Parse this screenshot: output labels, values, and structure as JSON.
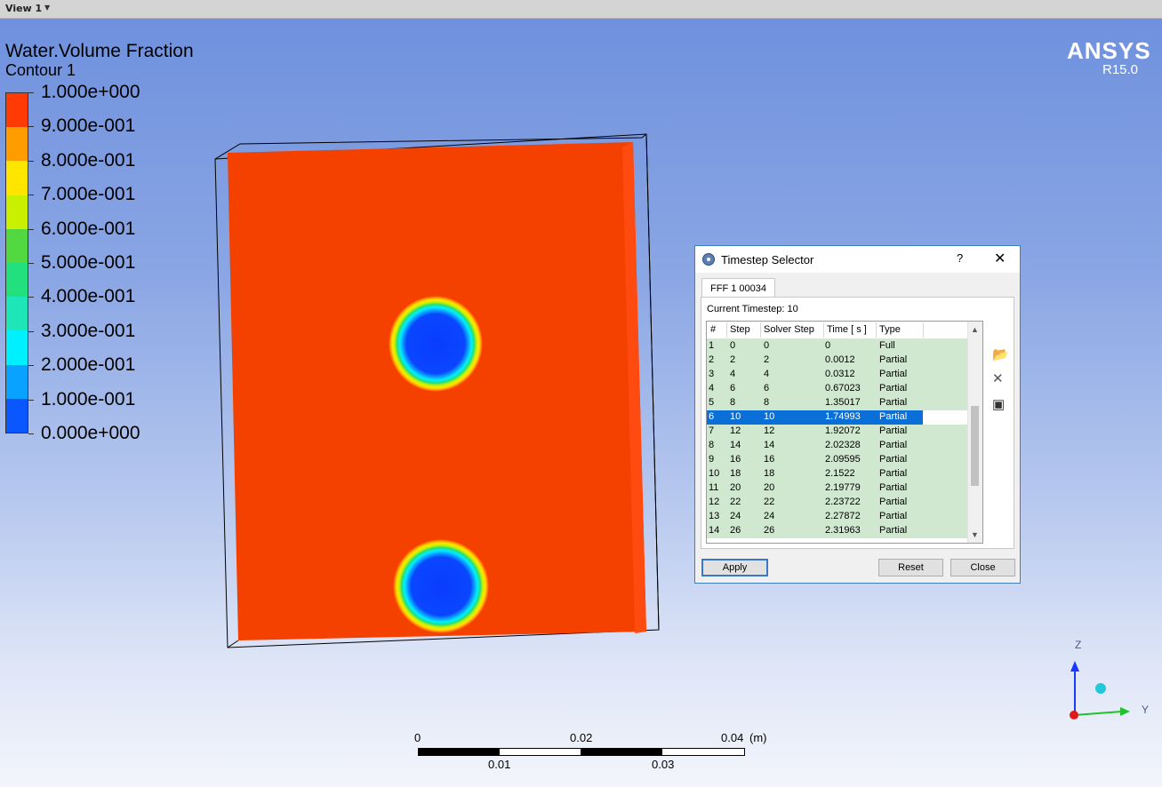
{
  "viewport": {
    "view_label": "View 1"
  },
  "legend": {
    "title": "Water.Volume Fraction",
    "subtitle": "Contour 1",
    "labels": [
      "1.000e+000",
      "9.000e-001",
      "8.000e-001",
      "7.000e-001",
      "6.000e-001",
      "5.000e-001",
      "4.000e-001",
      "3.000e-001",
      "2.000e-001",
      "1.000e-001",
      "0.000e+000"
    ],
    "colors": [
      "#ff3a05",
      "#ff9d00",
      "#ffe600",
      "#c8f000",
      "#52d840",
      "#22e07e",
      "#1ee6b8",
      "#00f0ff",
      "#0aa2ff",
      "#0a56ff"
    ]
  },
  "logo": {
    "name": "ANSYS",
    "version": "R15.0"
  },
  "scale_bar": {
    "ticks_top": [
      "0",
      "0.02",
      "0.04"
    ],
    "unit": "(m)",
    "ticks_bottom": [
      "0.01",
      "0.03"
    ]
  },
  "axes": {
    "z": "Z",
    "y": "Y"
  },
  "dialog": {
    "title": "Timestep Selector",
    "help": "?",
    "close": "✕",
    "tab": "FFF 1 00034",
    "current_timestep": "Current Timestep: 10",
    "columns": [
      "#",
      "Step",
      "Solver Step",
      "Time [ s ]",
      "Type"
    ],
    "rows": [
      [
        "1",
        "0",
        "0",
        "0",
        "Full"
      ],
      [
        "2",
        "2",
        "2",
        "0.0012",
        "Partial"
      ],
      [
        "3",
        "4",
        "4",
        "0.0312",
        "Partial"
      ],
      [
        "4",
        "6",
        "6",
        "0.67023",
        "Partial"
      ],
      [
        "5",
        "8",
        "8",
        "1.35017",
        "Partial"
      ],
      [
        "6",
        "10",
        "10",
        "1.74993",
        "Partial"
      ],
      [
        "7",
        "12",
        "12",
        "1.92072",
        "Partial"
      ],
      [
        "8",
        "14",
        "14",
        "2.02328",
        "Partial"
      ],
      [
        "9",
        "16",
        "16",
        "2.09595",
        "Partial"
      ],
      [
        "10",
        "18",
        "18",
        "2.1522",
        "Partial"
      ],
      [
        "11",
        "20",
        "20",
        "2.19779",
        "Partial"
      ],
      [
        "12",
        "22",
        "22",
        "2.23722",
        "Partial"
      ],
      [
        "13",
        "24",
        "24",
        "2.27872",
        "Partial"
      ],
      [
        "14",
        "26",
        "26",
        "2.31963",
        "Partial"
      ]
    ],
    "selected_index": 5,
    "buttons": {
      "apply": "Apply",
      "reset": "Reset",
      "close": "Close"
    }
  }
}
